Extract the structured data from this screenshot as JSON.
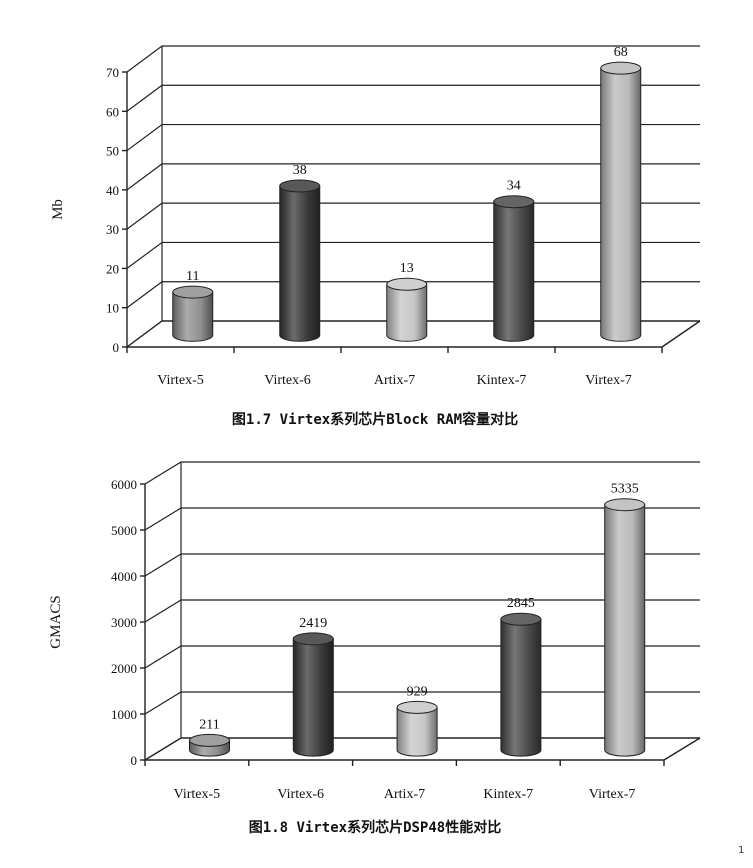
{
  "chart_data": [
    {
      "type": "bar",
      "title": "图1.7  Virtex系列芯片Block RAM容量对比",
      "ylabel": "Mb",
      "xlabel": "",
      "categories": [
        "Virtex-5",
        "Virtex-6",
        "Artix-7",
        "Kintex-7",
        "Virtex-7"
      ],
      "values": [
        11,
        38,
        13,
        34,
        68
      ],
      "value_labels": [
        "11",
        "38",
        "13",
        "34",
        "68"
      ],
      "ylim": [
        0,
        70
      ],
      "yticks": [
        "0",
        "10",
        "20",
        "30",
        "40",
        "50",
        "60",
        "70"
      ],
      "ytick_values": [
        0,
        10,
        20,
        30,
        40,
        50,
        60,
        70
      ],
      "grid": true,
      "bar_colors": [
        "#8f8f8f",
        "#3a3a3a",
        "#c6c6c6",
        "#4a4a4a",
        "#b9b9b9"
      ]
    },
    {
      "type": "bar",
      "title": "图1.8  Virtex系列芯片DSP48性能对比",
      "ylabel": "GMACS",
      "xlabel": "",
      "categories": [
        "Virtex-5",
        "Virtex-6",
        "Artix-7",
        "Kintex-7",
        "Virtex-7"
      ],
      "values": [
        211,
        2419,
        929,
        2845,
        5335
      ],
      "value_labels": [
        "211",
        "2419",
        "929",
        "2845",
        "5335"
      ],
      "ylim": [
        0,
        6000
      ],
      "yticks": [
        "0",
        "1000",
        "2000",
        "3000",
        "4000",
        "5000",
        "6000"
      ],
      "ytick_values": [
        0,
        1000,
        2000,
        3000,
        4000,
        5000,
        6000
      ],
      "grid": true,
      "bar_colors": [
        "#8f8f8f",
        "#3a3a3a",
        "#c6c6c6",
        "#4a4a4a",
        "#b9b9b9"
      ]
    }
  ],
  "page_mark": "1"
}
